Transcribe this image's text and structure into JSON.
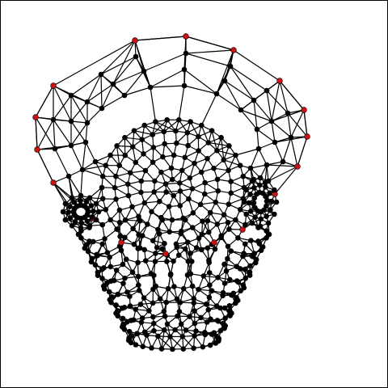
{
  "diagram": {
    "type": "triangle-mesh-graph",
    "description_visible_text": "",
    "colors": {
      "background": "#ffffff",
      "frame": "#000000",
      "edge": "#000000",
      "node": "#000000",
      "boundary_node": "#cc1111"
    }
  }
}
